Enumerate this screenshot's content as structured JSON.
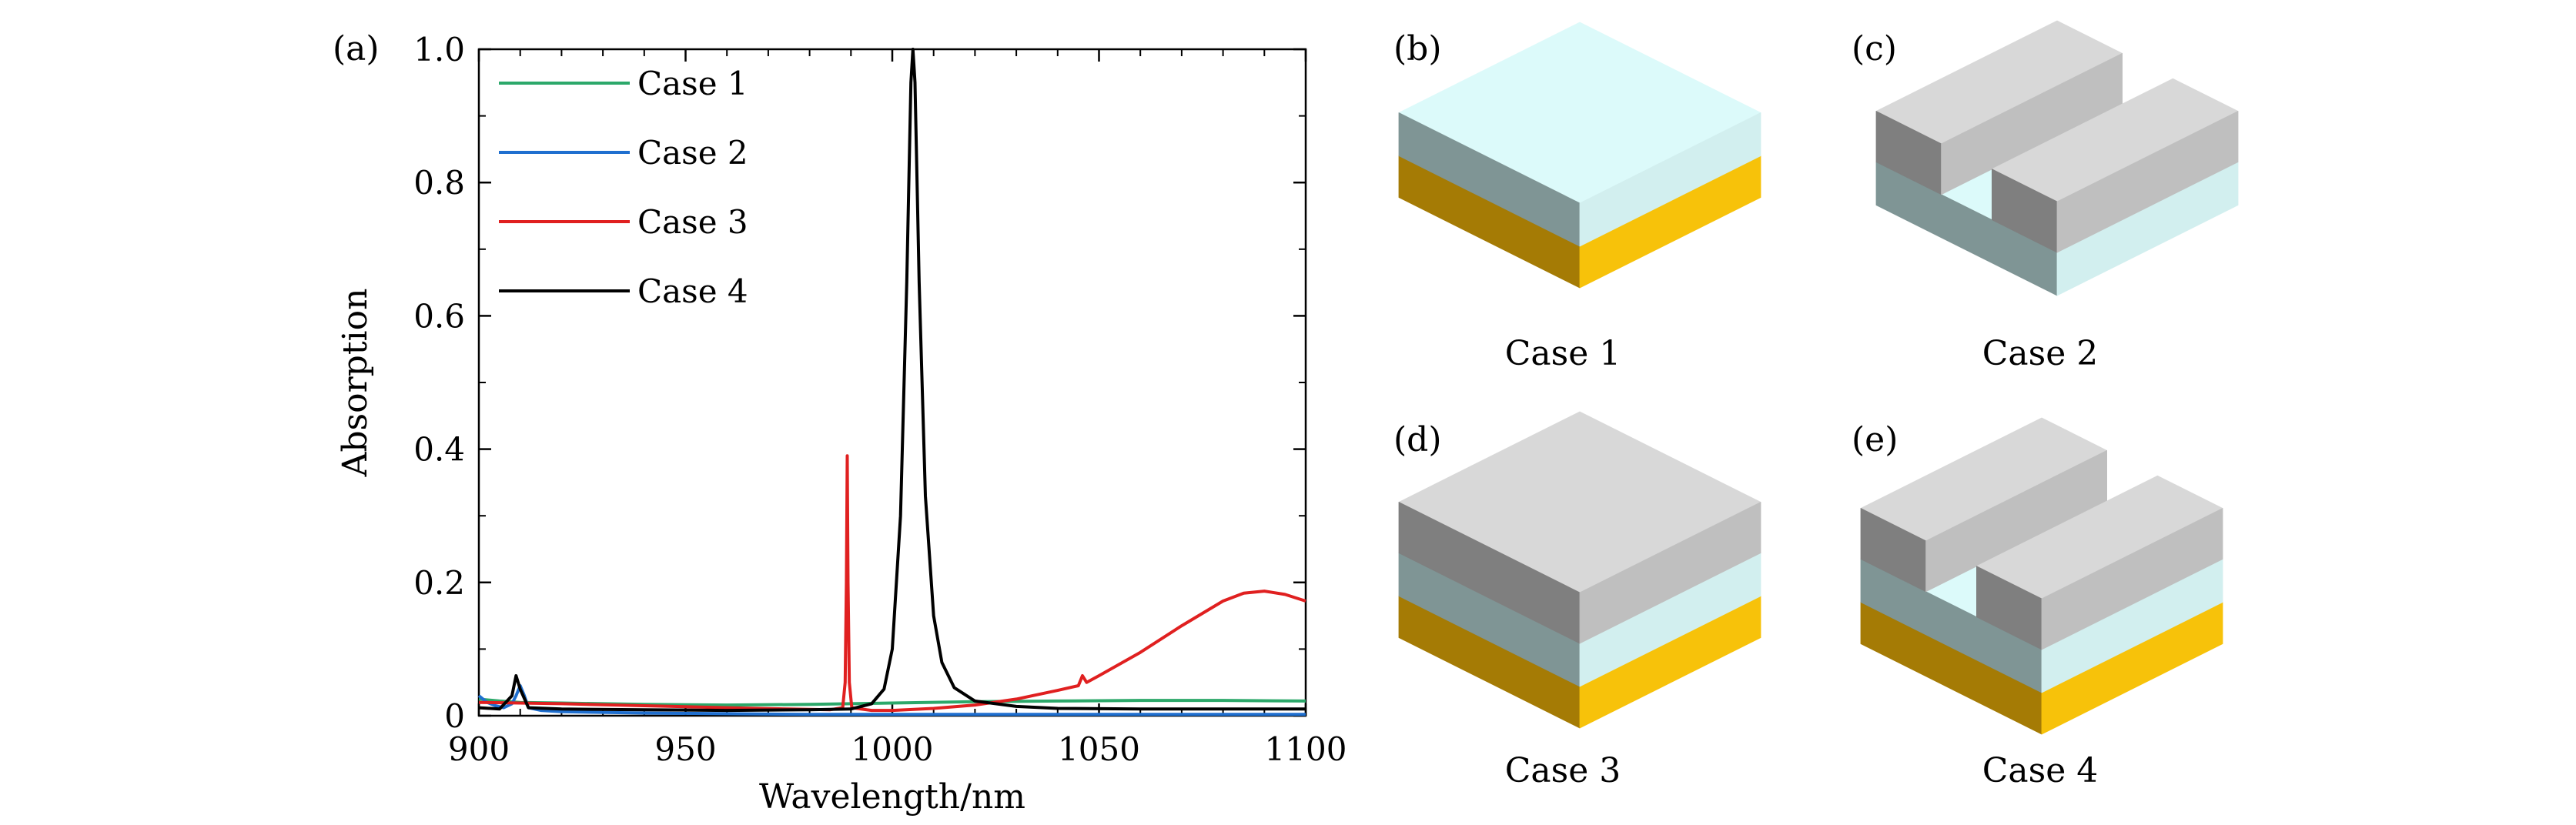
{
  "chart_data": {
    "type": "line",
    "panel_label": "(a)",
    "xlabel": "Wavelength/nm",
    "ylabel": "Absorption",
    "xlim": [
      900,
      1100
    ],
    "ylim": [
      0,
      1.0
    ],
    "xticks": [
      900,
      950,
      1000,
      1050,
      1100
    ],
    "xtick_labels": [
      "900",
      "950",
      "1000",
      "1050",
      "1100"
    ],
    "yticks": [
      0,
      0.2,
      0.4,
      0.6,
      0.8,
      1.0
    ],
    "ytick_labels": [
      "0",
      "0.2",
      "0.4",
      "0.6",
      "0.8",
      "1.0"
    ],
    "legend_position": "top-left",
    "series": [
      {
        "name": "Case 1",
        "color": "#2ca86a",
        "points": [
          [
            900,
            0.025
          ],
          [
            905,
            0.022
          ],
          [
            910,
            0.02
          ],
          [
            920,
            0.019
          ],
          [
            940,
            0.017
          ],
          [
            960,
            0.016
          ],
          [
            980,
            0.017
          ],
          [
            1000,
            0.019
          ],
          [
            1020,
            0.021
          ],
          [
            1040,
            0.022
          ],
          [
            1060,
            0.023
          ],
          [
            1080,
            0.023
          ],
          [
            1100,
            0.022
          ]
        ]
      },
      {
        "name": "Case 2",
        "color": "#1f6fcf",
        "points": [
          [
            900,
            0.03
          ],
          [
            902,
            0.02
          ],
          [
            904,
            0.015
          ],
          [
            906,
            0.012
          ],
          [
            908,
            0.018
          ],
          [
            909,
            0.03
          ],
          [
            910,
            0.045
          ],
          [
            911,
            0.03
          ],
          [
            912,
            0.012
          ],
          [
            915,
            0.008
          ],
          [
            920,
            0.006
          ],
          [
            940,
            0.004
          ],
          [
            960,
            0.003
          ],
          [
            980,
            0.002
          ],
          [
            1000,
            0.002
          ],
          [
            1020,
            0.002
          ],
          [
            1040,
            0.002
          ],
          [
            1060,
            0.002
          ],
          [
            1080,
            0.002
          ],
          [
            1100,
            0.002
          ]
        ]
      },
      {
        "name": "Case 3",
        "color": "#e02020",
        "points": [
          [
            900,
            0.02
          ],
          [
            920,
            0.018
          ],
          [
            940,
            0.015
          ],
          [
            960,
            0.012
          ],
          [
            975,
            0.01
          ],
          [
            985,
            0.009
          ],
          [
            988,
            0.012
          ],
          [
            988.6,
            0.05
          ],
          [
            988.9,
            0.2
          ],
          [
            989.1,
            0.39
          ],
          [
            989.3,
            0.2
          ],
          [
            989.6,
            0.05
          ],
          [
            990.2,
            0.012
          ],
          [
            995,
            0.008
          ],
          [
            1000,
            0.008
          ],
          [
            1010,
            0.011
          ],
          [
            1020,
            0.016
          ],
          [
            1030,
            0.025
          ],
          [
            1040,
            0.038
          ],
          [
            1045,
            0.045
          ],
          [
            1046,
            0.06
          ],
          [
            1047,
            0.05
          ],
          [
            1050,
            0.06
          ],
          [
            1060,
            0.095
          ],
          [
            1070,
            0.135
          ],
          [
            1080,
            0.172
          ],
          [
            1085,
            0.184
          ],
          [
            1090,
            0.187
          ],
          [
            1095,
            0.182
          ],
          [
            1100,
            0.172
          ]
        ]
      },
      {
        "name": "Case 4",
        "color": "#000000",
        "points": [
          [
            900,
            0.012
          ],
          [
            905,
            0.01
          ],
          [
            908,
            0.03
          ],
          [
            909,
            0.06
          ],
          [
            910,
            0.04
          ],
          [
            912,
            0.012
          ],
          [
            920,
            0.01
          ],
          [
            940,
            0.009
          ],
          [
            960,
            0.008
          ],
          [
            980,
            0.009
          ],
          [
            990,
            0.01
          ],
          [
            995,
            0.018
          ],
          [
            998,
            0.04
          ],
          [
            1000,
            0.1
          ],
          [
            1002,
            0.3
          ],
          [
            1003.5,
            0.65
          ],
          [
            1004.5,
            0.95
          ],
          [
            1005,
            1.0
          ],
          [
            1005.5,
            0.95
          ],
          [
            1006.5,
            0.65
          ],
          [
            1008,
            0.33
          ],
          [
            1010,
            0.15
          ],
          [
            1012,
            0.08
          ],
          [
            1015,
            0.042
          ],
          [
            1020,
            0.022
          ],
          [
            1030,
            0.014
          ],
          [
            1040,
            0.011
          ],
          [
            1060,
            0.01
          ],
          [
            1080,
            0.01
          ],
          [
            1100,
            0.01
          ]
        ]
      }
    ]
  },
  "schematics": [
    {
      "panel_label": "(b)",
      "caption": "Case 1"
    },
    {
      "panel_label": "(c)",
      "caption": "Case 2"
    },
    {
      "panel_label": "(d)",
      "caption": "Case 3"
    },
    {
      "panel_label": "(e)",
      "caption": "Case 4"
    }
  ],
  "colors": {
    "gold_top": "#f7c20a",
    "gold_side": "#a57b05",
    "cyan_top": "#dcfafa",
    "cyan_right": "#d2efef",
    "cyan_left": "#7f9595",
    "metal_top": "#d8d8d8",
    "metal_left": "#7f7f7f",
    "metal_right": "#bfbfbf"
  }
}
